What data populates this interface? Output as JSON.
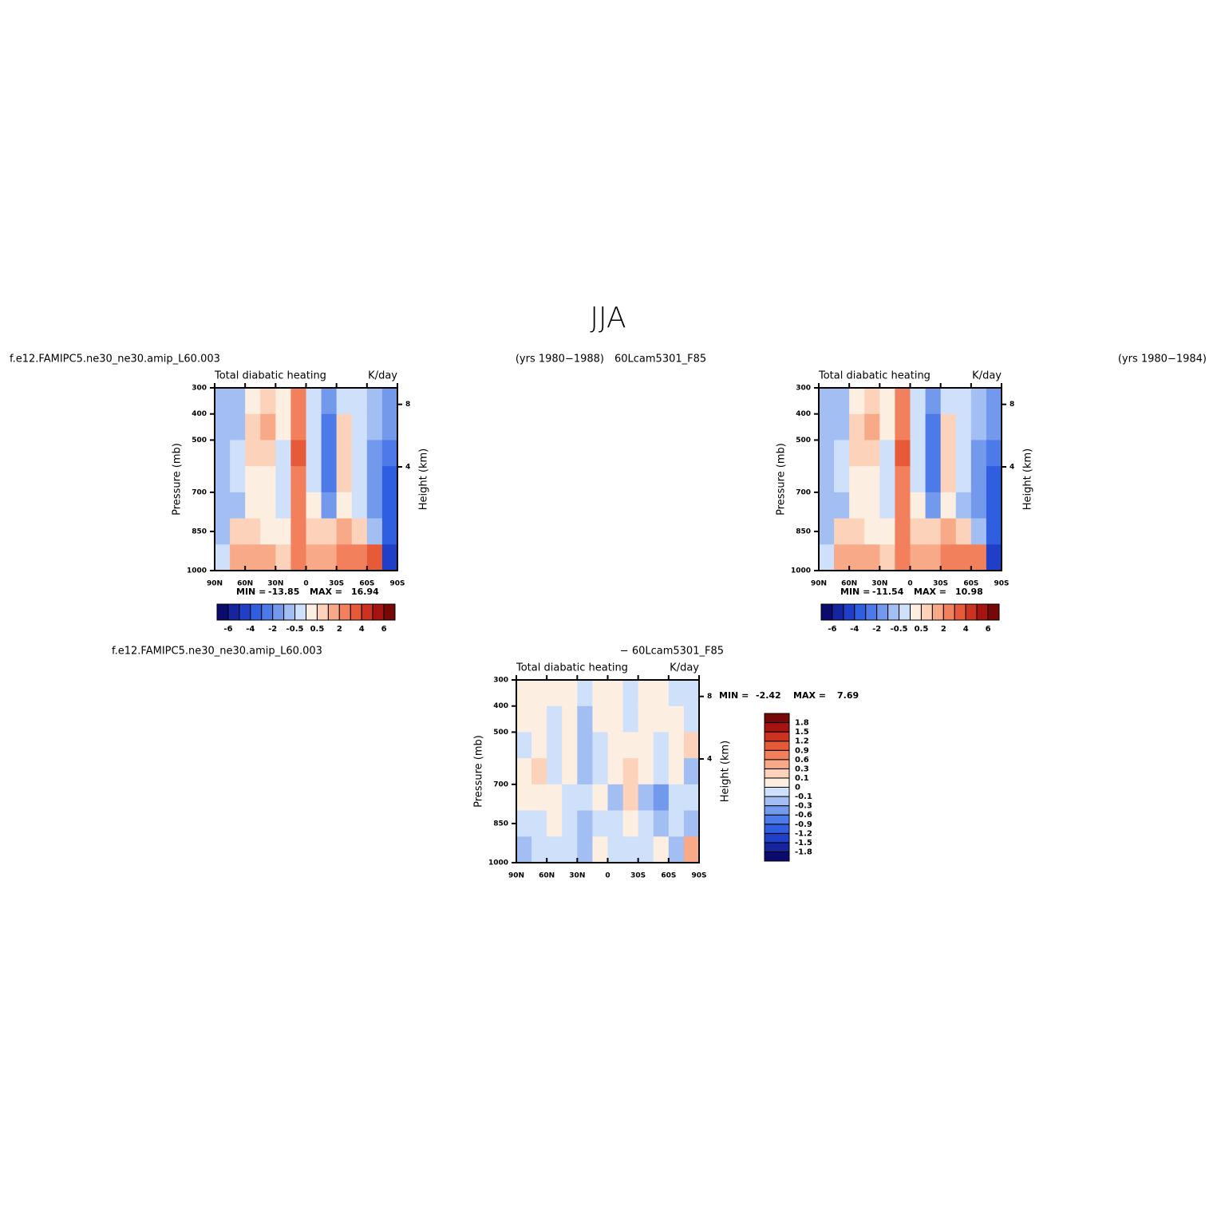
{
  "figure_title": "JJA",
  "chart_data": [
    {
      "type": "contour",
      "left_string": "f.e12.FAMIPC5.ne30_ne30.amip_L60.003",
      "right_string": "(yrs 1980−1988)",
      "center_title": "Total diabatic heating",
      "units": "K/day",
      "ylabel": "Pressure (mb)",
      "y2label": "Height (km)",
      "xlim": [
        90,
        -90
      ],
      "xticks": [
        {
          "value": 90,
          "label": "90N"
        },
        {
          "value": 60,
          "label": "60N"
        },
        {
          "value": 30,
          "label": "30N"
        },
        0,
        {
          "value": -30,
          "label": "30S"
        },
        {
          "value": -60,
          "label": "60S"
        },
        {
          "value": -90,
          "label": "90S"
        }
      ],
      "ylim": [
        1000,
        300
      ],
      "yticks": [
        300,
        400,
        500,
        700,
        850,
        1000
      ],
      "y2ticks": [
        8,
        4
      ],
      "min_label": "MIN =",
      "min": -13.85,
      "max_label": "MAX =",
      "max": 16.94,
      "lat": [
        82.5,
        67.5,
        52.5,
        37.5,
        22.5,
        7.5,
        -7.5,
        -22.5,
        -37.5,
        -52.5,
        -67.5,
        -82.5
      ],
      "lev": [
        350,
        450,
        550,
        650,
        750,
        850,
        950
      ],
      "values": [
        [
          -1,
          -0.7,
          0.3,
          0.7,
          0.3,
          2.5,
          -0.3,
          -1.5,
          -0.3,
          -0.3,
          -1,
          -1.5
        ],
        [
          -1,
          -0.7,
          0.7,
          1.2,
          0.3,
          2.5,
          -0.3,
          -2.5,
          0.7,
          -0.3,
          -1,
          -1.5
        ],
        [
          -0.7,
          -0.3,
          0.7,
          0.7,
          -0.3,
          3.5,
          -0.3,
          -2.5,
          0.7,
          -0.3,
          -1.5,
          -2.5
        ],
        [
          -0.7,
          -0.3,
          0.3,
          0.3,
          -0.3,
          2.5,
          -0.3,
          -2.5,
          0.7,
          -0.3,
          -1.5,
          -3.5
        ],
        [
          -1,
          -0.7,
          0.3,
          0.3,
          -0.3,
          2.5,
          0.3,
          -1.5,
          0.3,
          -0.3,
          -1.5,
          -3.5
        ],
        [
          -0.7,
          0.7,
          0.7,
          0.3,
          0.3,
          2.5,
          0.7,
          0.7,
          1.5,
          0.7,
          -0.7,
          -3.5
        ],
        [
          -0.3,
          1.5,
          1.5,
          1.5,
          0.7,
          2.5,
          1.5,
          1.5,
          2.5,
          2.5,
          3.5,
          -4.5
        ]
      ],
      "colorbar": "horizontal",
      "levels": [
        -6,
        {
          "value": -5
        },
        -4,
        {
          "value": -3
        },
        -2,
        {
          "value": -1
        },
        -0.5,
        {
          "value": 0
        },
        0.5,
        {
          "value": 1
        },
        2,
        {
          "value": 3
        },
        4,
        {
          "value": 5
        },
        6
      ],
      "colors": [
        "#0b0b6e",
        "#1525a0",
        "#1f3fc8",
        "#2f5ee0",
        "#4c7ae8",
        "#7399ec",
        "#a2bef2",
        "#cfe0fa",
        "#fdeee2",
        "#fcd2ba",
        "#f8aa88",
        "#f3805c",
        "#e65a38",
        "#cc3220",
        "#a51410",
        "#760808"
      ]
    },
    {
      "type": "contour",
      "left_string": "60Lcam5301_F85",
      "right_string": "(yrs 1980−1984)",
      "center_title": "Total diabatic heating",
      "units": "K/day",
      "ylabel": "Pressure (mb)",
      "y2label": "Height (km)",
      "xlim": [
        90,
        -90
      ],
      "xticks": [
        {
          "value": 90,
          "label": "90N"
        },
        {
          "value": 60,
          "label": "60N"
        },
        {
          "value": 30,
          "label": "30N"
        },
        0,
        {
          "value": -30,
          "label": "30S"
        },
        {
          "value": -60,
          "label": "60S"
        },
        {
          "value": -90,
          "label": "90S"
        }
      ],
      "ylim": [
        1000,
        300
      ],
      "yticks": [
        300,
        400,
        500,
        700,
        850,
        1000
      ],
      "y2ticks": [
        8,
        4
      ],
      "min_label": "MIN =",
      "min": -11.54,
      "max_label": "MAX =",
      "max": 10.98,
      "lat": [
        82.5,
        67.5,
        52.5,
        37.5,
        22.5,
        7.5,
        -7.5,
        -22.5,
        -37.5,
        -52.5,
        -67.5,
        -82.5
      ],
      "lev": [
        350,
        450,
        550,
        650,
        750,
        850,
        950
      ],
      "values": [
        [
          -1,
          -0.7,
          0.3,
          0.7,
          0.3,
          2.5,
          -0.3,
          -1.5,
          -0.3,
          -0.3,
          -1,
          -1.5
        ],
        [
          -1,
          -0.7,
          0.7,
          1.2,
          0.3,
          2.5,
          -0.3,
          -2.5,
          0.7,
          -0.3,
          -1,
          -1.5
        ],
        [
          -0.7,
          -0.3,
          0.7,
          0.7,
          -0.3,
          3.5,
          -0.3,
          -2.5,
          0.7,
          -0.3,
          -1.5,
          -2.5
        ],
        [
          -0.7,
          -0.3,
          0.3,
          0.3,
          -0.3,
          2.5,
          -0.3,
          -2.5,
          0.7,
          -0.3,
          -1.5,
          -3.5
        ],
        [
          -1,
          -0.7,
          0.3,
          0.3,
          -0.3,
          2.5,
          0.3,
          -1.5,
          0.3,
          -0.7,
          -1.5,
          -3.5
        ],
        [
          -0.7,
          0.7,
          0.7,
          0.3,
          0.3,
          2.5,
          0.7,
          0.7,
          1.5,
          0.7,
          -0.7,
          -3.5
        ],
        [
          -0.3,
          1.5,
          1.5,
          1.5,
          0.7,
          2.5,
          1.5,
          1.5,
          2.5,
          2.5,
          2.5,
          -4.5
        ]
      ],
      "colorbar": "horizontal",
      "levels": [
        -6,
        {
          "value": -5
        },
        -4,
        {
          "value": -3
        },
        -2,
        {
          "value": -1
        },
        -0.5,
        {
          "value": 0
        },
        0.5,
        {
          "value": 1
        },
        2,
        {
          "value": 3
        },
        4,
        {
          "value": 5
        },
        6
      ],
      "colors": [
        "#0b0b6e",
        "#1525a0",
        "#1f3fc8",
        "#2f5ee0",
        "#4c7ae8",
        "#7399ec",
        "#a2bef2",
        "#cfe0fa",
        "#fdeee2",
        "#fcd2ba",
        "#f8aa88",
        "#f3805c",
        "#e65a38",
        "#cc3220",
        "#a51410",
        "#760808"
      ]
    },
    {
      "type": "contour",
      "left_string": "f.e12.FAMIPC5.ne30_ne30.amip_L60.003",
      "right_string": "− 60Lcam5301_F85",
      "center_title": "Total diabatic heating",
      "units": "K/day",
      "ylabel": "Pressure (mb)",
      "y2label": "Height (km)",
      "xlim": [
        90,
        -90
      ],
      "xticks": [
        {
          "value": 90,
          "label": "90N"
        },
        {
          "value": 60,
          "label": "60N"
        },
        {
          "value": 30,
          "label": "30N"
        },
        0,
        {
          "value": -30,
          "label": "30S"
        },
        {
          "value": -60,
          "label": "60S"
        },
        {
          "value": -90,
          "label": "90S"
        }
      ],
      "ylim": [
        1000,
        300
      ],
      "yticks": [
        300,
        400,
        500,
        700,
        850,
        1000
      ],
      "y2ticks": [
        8,
        4
      ],
      "min_label": "MIN =",
      "min": -2.42,
      "max_label": "MAX =",
      "max": 7.69,
      "lat": [
        82.5,
        67.5,
        52.5,
        37.5,
        22.5,
        7.5,
        -7.5,
        -22.5,
        -37.5,
        -52.5,
        -67.5,
        -82.5
      ],
      "lev": [
        350,
        450,
        550,
        650,
        750,
        850,
        950
      ],
      "values": [
        [
          0.05,
          0.05,
          0.05,
          0.05,
          -0.05,
          0.05,
          0.05,
          -0.05,
          0.05,
          0.05,
          -0.05,
          -0.05
        ],
        [
          0.05,
          0.05,
          -0.05,
          0.05,
          -0.2,
          0.05,
          0.05,
          -0.05,
          0.05,
          0.05,
          0.05,
          -0.05
        ],
        [
          -0.05,
          0.05,
          -0.05,
          0.05,
          -0.2,
          -0.05,
          0.05,
          0.05,
          0.05,
          -0.05,
          0.05,
          0.2
        ],
        [
          0.05,
          0.2,
          -0.05,
          0.05,
          -0.2,
          -0.05,
          0.05,
          0.2,
          0.05,
          -0.05,
          0.05,
          -0.2
        ],
        [
          0.05,
          0.05,
          0.05,
          -0.05,
          -0.05,
          0.05,
          -0.2,
          0.2,
          -0.2,
          -0.4,
          -0.05,
          -0.05
        ],
        [
          -0.05,
          -0.05,
          0.05,
          -0.05,
          -0.2,
          -0.05,
          -0.05,
          0.05,
          -0.05,
          -0.2,
          -0.05,
          -0.2
        ],
        [
          -0.2,
          -0.05,
          -0.05,
          -0.05,
          -0.2,
          0.05,
          -0.05,
          -0.05,
          -0.05,
          0.05,
          -0.2,
          0.4
        ]
      ],
      "colorbar": "vertical",
      "levels": [
        -1.8,
        -1.5,
        -1.2,
        -0.9,
        -0.6,
        -0.3,
        -0.1,
        0,
        0.1,
        0.3,
        0.6,
        0.9,
        1.2,
        1.5,
        1.8
      ],
      "colors": [
        "#0b0b6e",
        "#1525a0",
        "#1f3fc8",
        "#2f5ee0",
        "#4c7ae8",
        "#7399ec",
        "#a2bef2",
        "#cfe0fa",
        "#fdeee2",
        "#fcd2ba",
        "#f8aa88",
        "#f3805c",
        "#e65a38",
        "#cc3220",
        "#a51410",
        "#760808"
      ]
    }
  ]
}
